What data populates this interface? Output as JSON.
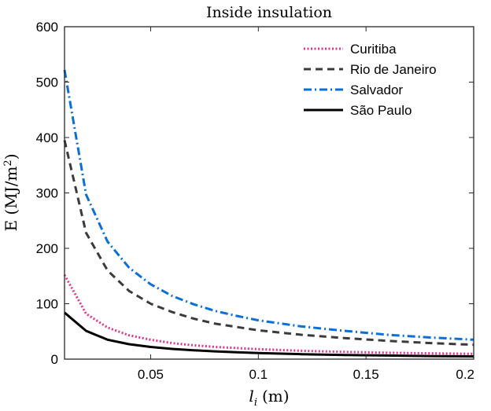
{
  "chart_data": {
    "type": "line",
    "title": "Inside insulation",
    "xlabel": "l",
    "xlabel_sub": "i",
    "xlabel_unit": "(m)",
    "ylabel": "E (MJ/m",
    "ylabel_sup": "2",
    "ylabel_close": ")",
    "xlim": [
      0.01,
      0.2
    ],
    "ylim": [
      0,
      600
    ],
    "xticks": [
      0.05,
      0.1,
      0.15,
      0.2
    ],
    "xtick_labels": [
      "0.05",
      "0.1",
      "0.15",
      "0.2"
    ],
    "yticks": [
      0,
      100,
      200,
      300,
      400,
      500,
      600
    ],
    "ytick_labels": [
      "0",
      "100",
      "200",
      "300",
      "400",
      "500",
      "600"
    ],
    "x": [
      0.01,
      0.02,
      0.03,
      0.04,
      0.05,
      0.06,
      0.07,
      0.08,
      0.09,
      0.1,
      0.12,
      0.14,
      0.16,
      0.18,
      0.2
    ],
    "series": [
      {
        "name": "Curitiba",
        "color": "#e0338f",
        "style": "dotted",
        "values": [
          152,
          82,
          57,
          43,
          35,
          29,
          25,
          22,
          20,
          18,
          15,
          13,
          11.5,
          10.5,
          9.5
        ]
      },
      {
        "name": "Rio de Janeiro",
        "color": "#3b3b3b",
        "style": "dashed",
        "values": [
          395,
          228,
          160,
          123,
          100,
          85,
          73,
          64,
          58,
          52,
          44,
          38,
          33,
          29,
          26
        ]
      },
      {
        "name": "Salvador",
        "color": "#0a6fd6",
        "style": "dashdot",
        "values": [
          522,
          297,
          212,
          165,
          135,
          114,
          99,
          87,
          78,
          70,
          59,
          51,
          44,
          39,
          35
        ]
      },
      {
        "name": "São Paulo",
        "color": "#000000",
        "style": "solid",
        "values": [
          84,
          51,
          35,
          27,
          22,
          18.5,
          16,
          14,
          12.5,
          11,
          9,
          7.5,
          6.5,
          5.5,
          5
        ]
      }
    ],
    "legend_position": "top-right",
    "grid": false
  }
}
